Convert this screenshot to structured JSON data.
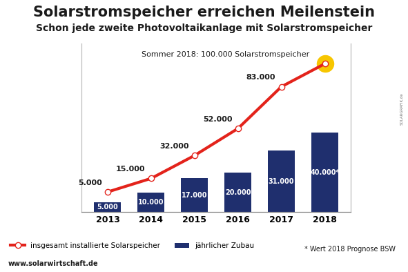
{
  "chart_data": {
    "type": "bar",
    "title": "Solarstromspeicher erreichen Meilenstein",
    "subtitle": "Schon jede zweite Photovoltaikanlage mit Solarstromspeicher",
    "annotations": [
      "Sommer 2018: 100.000 Solarstromspeicher"
    ],
    "footnote": "* Wert 2018 Prognose BSW",
    "source": "www.solarwirtschaft.de",
    "credit": "SOLARGRAFIK.de",
    "categories": [
      "2013",
      "2014",
      "2015",
      "2016",
      "2017",
      "2018"
    ],
    "series": [
      {
        "name": "insgesamt installierte Solarspeicher",
        "type": "line",
        "color": "#e3231b",
        "marker": "o",
        "axis": "y2",
        "values": [
          5000,
          15000,
          32000,
          52000,
          83000,
          100000
        ],
        "value_labels": [
          "5.000",
          "15.000",
          "32.000",
          "52.000",
          "83.000",
          null
        ]
      },
      {
        "name": "jährlicher Zubau",
        "type": "bar",
        "color": "#1f2f6e",
        "values": [
          5000,
          10000,
          17000,
          20000,
          31000,
          40000
        ],
        "value_labels": [
          "5.000",
          "10.000",
          "17.000",
          "20.000",
          "31.000",
          "40.000*"
        ]
      }
    ],
    "ylim": [
      0,
      85000
    ],
    "yticks": [],
    "y2lim": [
      -10000,
      115000
    ],
    "y2ticks": [],
    "data_labels": true,
    "tick_labels": "x",
    "grid": false,
    "legend": "lower left"
  }
}
